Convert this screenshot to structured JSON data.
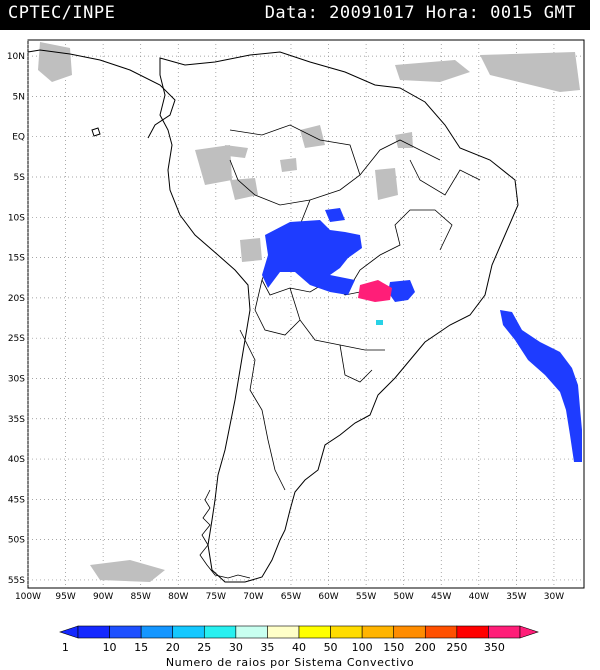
{
  "header": {
    "source": "CPTEC/INPE",
    "datetime": "Data: 20091017 Hora: 0015 GMT"
  },
  "map": {
    "lat_labels": [
      "10N",
      "5N",
      "EQ",
      "5S",
      "10S",
      "15S",
      "20S",
      "25S",
      "30S",
      "35S",
      "40S",
      "45S",
      "50S",
      "55S"
    ],
    "lon_labels": [
      "100W",
      "95W",
      "90W",
      "85W",
      "80W",
      "75W",
      "70W",
      "65W",
      "60W",
      "55W",
      "50W",
      "45W",
      "40W",
      "35W",
      "30W"
    ],
    "lat_range": [
      -56,
      12
    ],
    "lon_range": [
      -100,
      -26
    ],
    "gridlines": "dotted",
    "layers": {
      "clouds_color": "#bfbfbf",
      "coastline_color": "#000000"
    },
    "storm_cells": [
      {
        "region": "Bolivia / Mato Grosso",
        "class": "1-10",
        "color": "#1e3cff"
      },
      {
        "region": "Mato Grosso do Sul / Goias",
        "class": "350",
        "color": "#ff1e78"
      },
      {
        "region": "Atlantic off southern Brazil",
        "class": "1-10",
        "color": "#1e3cff"
      },
      {
        "region": "Parana",
        "class": "20-25",
        "color": "#28d2e6"
      }
    ]
  },
  "colorbar": {
    "labels": [
      "1",
      "10",
      "15",
      "20",
      "25",
      "30",
      "35",
      "40",
      "50",
      "100",
      "150",
      "200",
      "250",
      "350"
    ],
    "colors": [
      "#1428ff",
      "#1e50ff",
      "#1496ff",
      "#14c8ff",
      "#28f0f0",
      "#c8fff0",
      "#ffffc8",
      "#ffff00",
      "#ffdc00",
      "#ffb400",
      "#ff8c00",
      "#ff5000",
      "#ff0000",
      "#ff1e78"
    ],
    "caption": "Numero de raios por Sistema Convectivo"
  }
}
